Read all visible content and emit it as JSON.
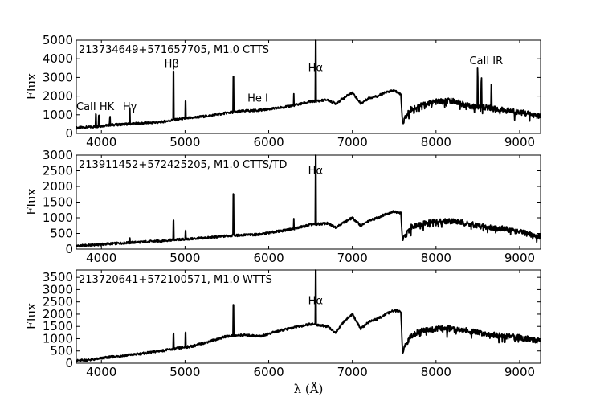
{
  "chart_data": [
    {
      "type": "line",
      "title": "213734649+571657705, M1.0 CTTS",
      "xlabel": "",
      "ylabel": "Flux",
      "xlim": [
        3700,
        9250
      ],
      "ylim": [
        0,
        5000
      ],
      "xticks": [
        4000,
        5000,
        6000,
        7000,
        8000,
        9000
      ],
      "yticks": [
        0,
        1000,
        2000,
        3000,
        4000,
        5000
      ],
      "annotations": [
        {
          "text": "CaII HK",
          "x": 3700,
          "y": 1250
        },
        {
          "text": "Hγ",
          "x": 4340,
          "y": 1250
        },
        {
          "text": "Hβ",
          "x": 4840,
          "y": 3550
        },
        {
          "text": "He I",
          "x": 5870,
          "y": 1700
        },
        {
          "text": "Hα",
          "x": 6560,
          "y": 3350
        },
        {
          "text": "CaII IR",
          "x": 8600,
          "y": 3700
        }
      ],
      "series": [
        {
          "x": [
            3700,
            3900,
            4100,
            4300,
            4500,
            4700,
            4900,
            5100,
            5300,
            5500,
            5700,
            5900,
            6100,
            6300,
            6500,
            6700,
            6800,
            6900,
            7000,
            7100,
            7200,
            7300,
            7400,
            7500,
            7580,
            7600,
            7700,
            7800,
            8000,
            8200,
            8400,
            8600,
            8800,
            9000,
            9250
          ],
          "y": [
            300,
            350,
            450,
            500,
            550,
            600,
            750,
            850,
            950,
            1100,
            1200,
            1250,
            1350,
            1500,
            1700,
            1800,
            1600,
            1900,
            2200,
            1600,
            1900,
            2000,
            2200,
            2300,
            2100,
            600,
            1300,
            1500,
            1700,
            1750,
            1450,
            1400,
            1250,
            1150,
            900
          ]
        }
      ],
      "emission_lines": [
        {
          "x": 3934,
          "height": 700
        },
        {
          "x": 3969,
          "height": 600
        },
        {
          "x": 4101,
          "height": 400
        },
        {
          "x": 4340,
          "height": 800
        },
        {
          "x": 4861,
          "height": 2600
        },
        {
          "x": 5007,
          "height": 900
        },
        {
          "x": 5577,
          "height": 1900
        },
        {
          "x": 6300,
          "height": 600
        },
        {
          "x": 6563,
          "height": 3300
        },
        {
          "x": 8498,
          "height": 2000
        },
        {
          "x": 8542,
          "height": 1700
        },
        {
          "x": 8662,
          "height": 1300
        }
      ]
    },
    {
      "type": "line",
      "title": "213911452+572425205, M1.0 CTTS/TD",
      "xlabel": "",
      "ylabel": "Flux",
      "xlim": [
        3700,
        9250
      ],
      "ylim": [
        0,
        3000
      ],
      "xticks": [
        4000,
        5000,
        6000,
        7000,
        8000,
        9000
      ],
      "yticks": [
        0,
        500,
        1000,
        1500,
        2000,
        2500,
        3000
      ],
      "annotations": [
        {
          "text": "Hα",
          "x": 6560,
          "y": 2400
        }
      ],
      "series": [
        {
          "x": [
            3700,
            3900,
            4100,
            4300,
            4500,
            4700,
            4900,
            5100,
            5300,
            5500,
            5700,
            5900,
            6100,
            6300,
            6500,
            6700,
            6800,
            6900,
            7000,
            7100,
            7200,
            7300,
            7400,
            7500,
            7580,
            7600,
            7700,
            7800,
            8000,
            8200,
            8400,
            8600,
            8800,
            9000,
            9250
          ],
          "y": [
            100,
            130,
            170,
            200,
            230,
            260,
            300,
            330,
            370,
            420,
            450,
            470,
            560,
            650,
            780,
            820,
            700,
            850,
            1000,
            750,
            900,
            1000,
            1120,
            1200,
            1150,
            280,
            700,
            800,
            880,
            900,
            800,
            700,
            650,
            550,
            400
          ]
        }
      ],
      "emission_lines": [
        {
          "x": 4340,
          "height": 150
        },
        {
          "x": 4861,
          "height": 600
        },
        {
          "x": 5007,
          "height": 250
        },
        {
          "x": 5577,
          "height": 1350
        },
        {
          "x": 6563,
          "height": 2250
        },
        {
          "x": 6300,
          "height": 300
        }
      ]
    },
    {
      "type": "line",
      "title": "213720641+572100571, M1.0 WTTS",
      "xlabel": "λ (Å)",
      "ylabel": "Flux",
      "xlim": [
        3700,
        9250
      ],
      "ylim": [
        0,
        3800
      ],
      "xticks": [
        4000,
        5000,
        6000,
        7000,
        8000,
        9000
      ],
      "yticks": [
        0,
        500,
        1000,
        1500,
        2000,
        2500,
        3000,
        3500
      ],
      "annotations": [
        {
          "text": "Hα",
          "x": 6560,
          "y": 2400
        }
      ],
      "series": [
        {
          "x": [
            3700,
            3900,
            4100,
            4300,
            4500,
            4700,
            4900,
            5100,
            5300,
            5500,
            5700,
            5900,
            6100,
            6300,
            6500,
            6700,
            6800,
            6900,
            7000,
            7100,
            7200,
            7300,
            7400,
            7500,
            7580,
            7600,
            7700,
            7800,
            8000,
            8200,
            8400,
            8600,
            8800,
            9000,
            9250
          ],
          "y": [
            100,
            150,
            250,
            320,
            400,
            500,
            600,
            700,
            900,
            1100,
            1150,
            1100,
            1300,
            1450,
            1600,
            1500,
            1250,
            1700,
            2000,
            1400,
            1700,
            1800,
            2000,
            2150,
            2100,
            500,
            1100,
            1300,
            1400,
            1450,
            1300,
            1200,
            1100,
            1050,
            900
          ]
        }
      ],
      "emission_lines": [
        {
          "x": 4861,
          "height": 600
        },
        {
          "x": 5007,
          "height": 600
        },
        {
          "x": 5577,
          "height": 1300
        },
        {
          "x": 6563,
          "height": 2400
        }
      ]
    }
  ]
}
